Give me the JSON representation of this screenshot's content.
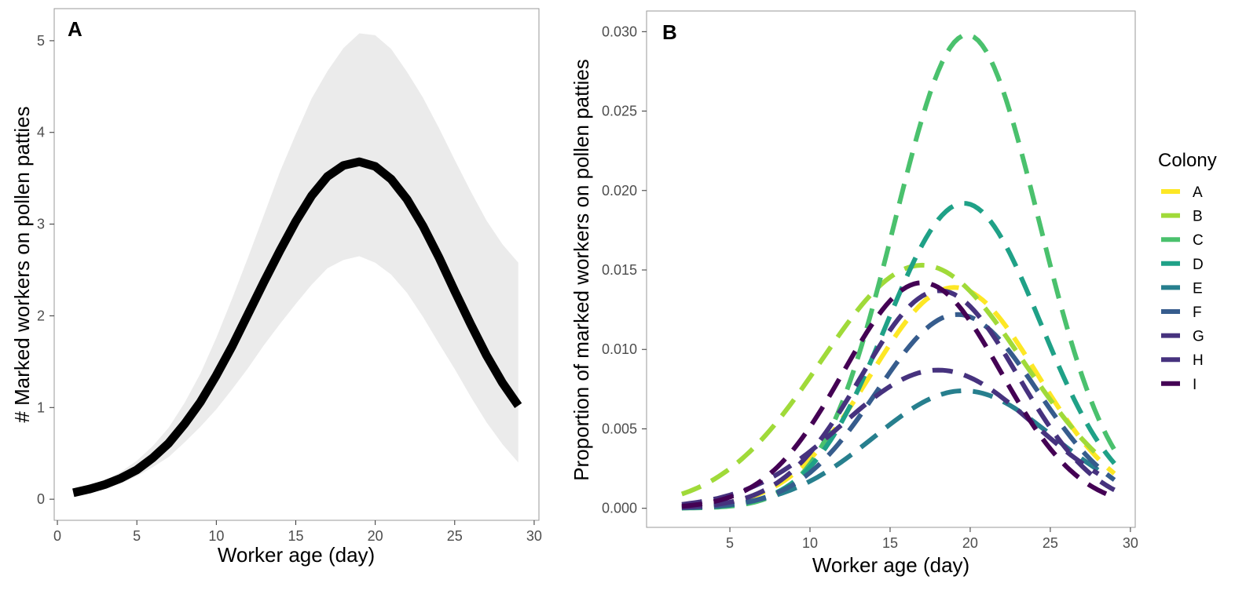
{
  "colors": {
    "ribbon": "#ebebeb",
    "frame": "#9a9a9a",
    "tick": "#333333",
    "main_line": "#000000"
  },
  "chart_data": [
    {
      "id": "A",
      "type": "line",
      "panel_label": "A",
      "xlabel": "Worker age (day)",
      "ylabel": "# Marked workers on pollen patties",
      "xlim": [
        -0.2,
        30.3
      ],
      "ylim": [
        -0.23,
        5.35
      ],
      "xticks": [
        0,
        5,
        10,
        15,
        20,
        25,
        30
      ],
      "xtick_labels": [
        "0",
        "5",
        "10",
        "15",
        "20",
        "25",
        "30"
      ],
      "yticks": [
        0,
        1,
        2,
        3,
        4,
        5
      ],
      "ytick_labels": [
        "0",
        "1",
        "2",
        "3",
        "4",
        "5"
      ],
      "x": [
        1,
        2,
        3,
        4,
        5,
        6,
        7,
        8,
        9,
        10,
        11,
        12,
        13,
        14,
        15,
        16,
        17,
        18,
        19,
        20,
        21,
        22,
        23,
        24,
        25,
        26,
        27,
        28,
        29
      ],
      "fit": [
        0.07,
        0.11,
        0.16,
        0.23,
        0.32,
        0.45,
        0.61,
        0.82,
        1.06,
        1.35,
        1.67,
        2.02,
        2.37,
        2.71,
        3.03,
        3.31,
        3.52,
        3.64,
        3.68,
        3.63,
        3.49,
        3.27,
        2.98,
        2.64,
        2.27,
        1.91,
        1.57,
        1.27,
        1.02
      ],
      "lower": [
        0.05,
        0.08,
        0.12,
        0.17,
        0.25,
        0.35,
        0.46,
        0.62,
        0.79,
        0.98,
        1.2,
        1.43,
        1.68,
        1.91,
        2.13,
        2.34,
        2.52,
        2.61,
        2.65,
        2.58,
        2.45,
        2.25,
        1.99,
        1.7,
        1.42,
        1.12,
        0.84,
        0.6,
        0.4
      ],
      "upper": [
        0.09,
        0.14,
        0.2,
        0.3,
        0.42,
        0.58,
        0.78,
        1.05,
        1.37,
        1.76,
        2.19,
        2.64,
        3.1,
        3.57,
        3.98,
        4.37,
        4.67,
        4.92,
        5.08,
        5.06,
        4.91,
        4.66,
        4.38,
        4.05,
        3.7,
        3.36,
        3.04,
        2.78,
        2.58
      ]
    },
    {
      "id": "B",
      "type": "line",
      "panel_label": "B",
      "xlabel": "Worker age (day)",
      "ylabel": "Proportion of marked workers on pollen patties",
      "xlim": [
        -0.2,
        30.3
      ],
      "ylim": [
        -0.0012,
        0.0313
      ],
      "xticks": [
        5,
        10,
        15,
        20,
        25,
        30
      ],
      "xtick_labels": [
        "5",
        "10",
        "15",
        "20",
        "25",
        "30"
      ],
      "yticks": [
        0,
        0.005,
        0.01,
        0.015,
        0.02,
        0.025,
        0.03
      ],
      "ytick_labels": [
        "0.000",
        "0.005",
        "0.010",
        "0.015",
        "0.020",
        "0.025",
        "0.030"
      ],
      "legend_title": "Colony",
      "legend_position": "right",
      "series": [
        {
          "name": "A",
          "color": "#fde725",
          "peak": 0.0139,
          "mu": 19.0,
          "sigma": 5.2,
          "x_start": 2,
          "x_end": 29
        },
        {
          "name": "B",
          "color": "#a0da39",
          "peak": 0.0153,
          "mu": 17.0,
          "sigma": 6.3,
          "x_start": 2,
          "x_end": 28
        },
        {
          "name": "C",
          "color": "#4ac16d",
          "peak": 0.0298,
          "mu": 19.8,
          "sigma": 4.5,
          "x_start": 2,
          "x_end": 29
        },
        {
          "name": "D",
          "color": "#1fa187",
          "peak": 0.0192,
          "mu": 19.6,
          "sigma": 4.8,
          "x_start": 2,
          "x_end": 29
        },
        {
          "name": "E",
          "color": "#277f8e",
          "peak": 0.0074,
          "mu": 19.6,
          "sigma": 5.6,
          "x_start": 2,
          "x_end": 28
        },
        {
          "name": "F",
          "color": "#365c8d",
          "peak": 0.0122,
          "mu": 19.2,
          "sigma": 5.0,
          "x_start": 2,
          "x_end": 29
        },
        {
          "name": "G",
          "color": "#46327e",
          "peak": 0.0137,
          "mu": 18.1,
          "sigma": 4.9,
          "x_start": 2,
          "x_end": 29
        },
        {
          "name": "H",
          "color": "#46327e",
          "peak": 0.0087,
          "mu": 18.0,
          "sigma": 6.0,
          "x_start": 2,
          "x_end": 28
        },
        {
          "name": "I",
          "color": "#440154",
          "peak": 0.0142,
          "mu": 17.0,
          "sigma": 4.9,
          "x_start": 2,
          "x_end": 29
        }
      ]
    }
  ]
}
